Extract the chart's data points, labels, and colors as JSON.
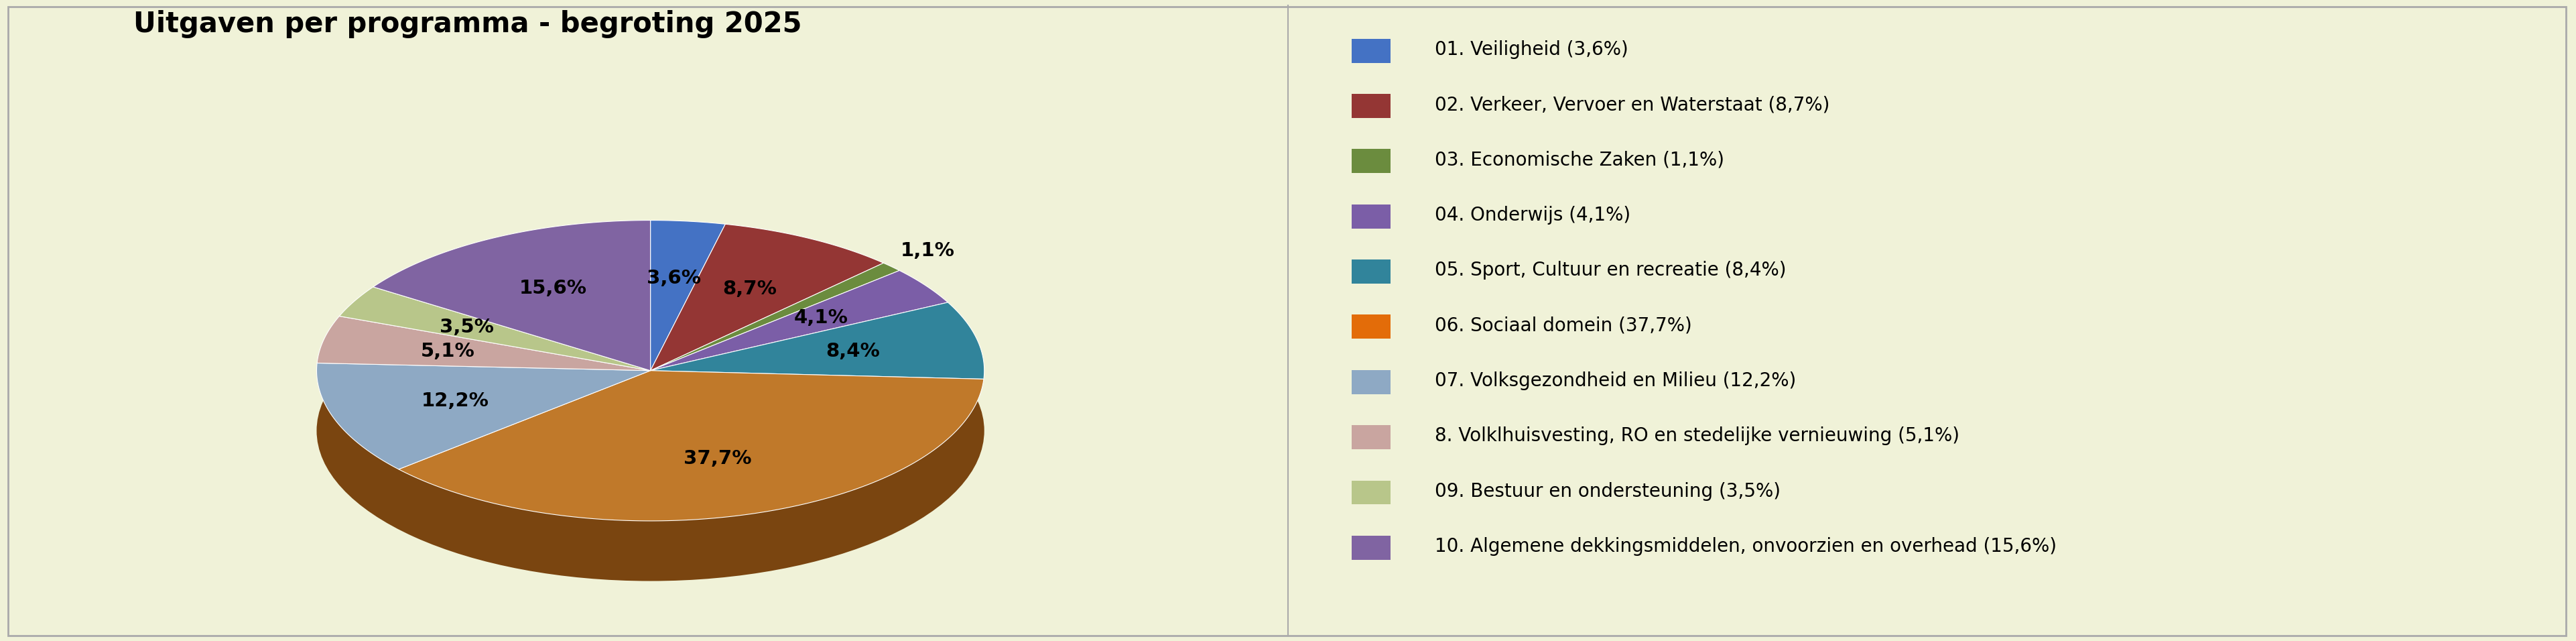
{
  "title": "Uitgaven per programma - begroting 2025",
  "slices": [
    {
      "label": "01. Veiligheid (3,6%)",
      "pct_label": "3,6%",
      "value": 3.6,
      "color": "#4472C4",
      "legend_color": "#4472C4"
    },
    {
      "label": "02. Verkeer, Vervoer en Waterstaat (8,7%)",
      "pct_label": "8,7%",
      "value": 8.7,
      "color": "#943634",
      "legend_color": "#943634"
    },
    {
      "label": "03. Economische Zaken (1,1%)",
      "pct_label": "1,1%",
      "value": 1.1,
      "color": "#6B8C3E",
      "legend_color": "#6B8C3E"
    },
    {
      "label": "04. Onderwijs (4,1%)",
      "pct_label": "4,1%",
      "value": 4.1,
      "color": "#7B5EA7",
      "legend_color": "#7B5EA7"
    },
    {
      "label": "05. Sport, Cultuur en recreatie (8,4%)",
      "pct_label": "8,4%",
      "value": 8.4,
      "color": "#31849B",
      "legend_color": "#31849B"
    },
    {
      "label": "06. Sociaal domein (37,7%)",
      "pct_label": "37,7%",
      "value": 37.7,
      "color": "#C0792A",
      "legend_color": "#E36C09"
    },
    {
      "label": "07. Volksgezondheid en Milieu (12,2%)",
      "pct_label": "12,2%",
      "value": 12.2,
      "color": "#8EA9C4",
      "legend_color": "#8EA9C4"
    },
    {
      "label": "8. Volklhuisvesting, RO en stedelijke vernieuwing (5,1%)",
      "pct_label": "5,1%",
      "value": 5.1,
      "color": "#C9A5A0",
      "legend_color": "#C9A5A0"
    },
    {
      "label": "09. Bestuur en ondersteuning (3,5%)",
      "pct_label": "3,5%",
      "value": 3.5,
      "color": "#B8C68A",
      "legend_color": "#B8C68A"
    },
    {
      "label": "10. Algemene dekkingsmiddelen, onvoorzien en overhead (15,6%)",
      "pct_label": "15,6%",
      "value": 15.6,
      "color": "#8064A2",
      "legend_color": "#8064A2"
    }
  ],
  "bg_color_pie": "#F0F2D8",
  "bg_color_legend": "#C5CDE0",
  "border_color": "#AAAAAA",
  "title_fontsize": 30,
  "pct_fontsize": 21,
  "legend_fontsize": 20,
  "startangle": 90,
  "pie_split": 0.5,
  "shadow_depth": 0.18,
  "shadow_color": "#7A4510"
}
